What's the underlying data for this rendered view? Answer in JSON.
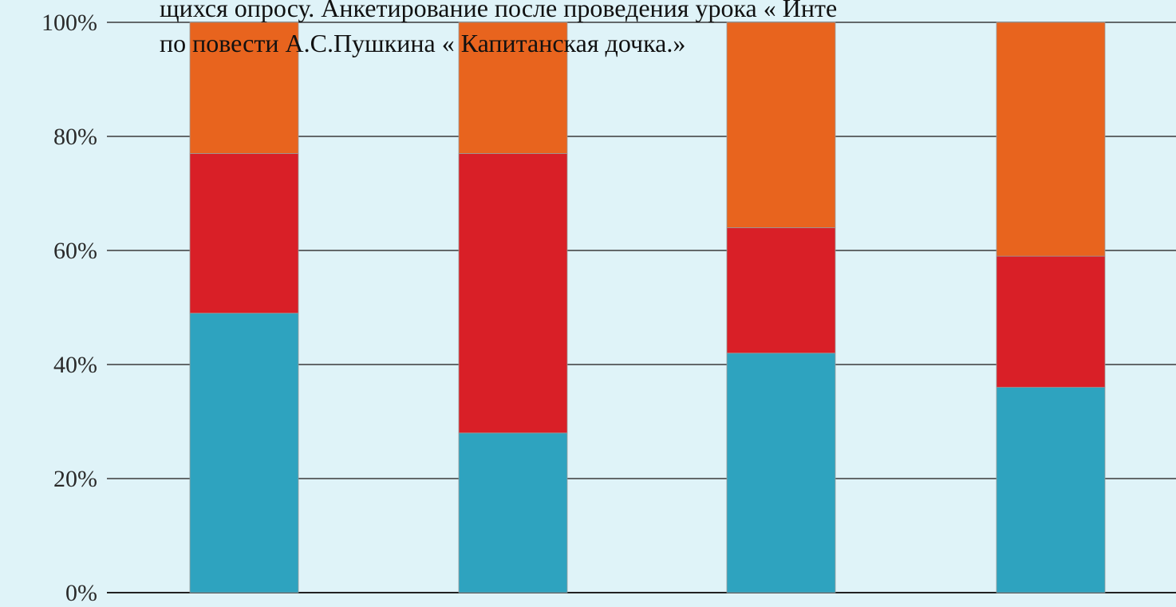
{
  "caption": {
    "line1": "щихся опросу. Анкетирование после проведения урока « Инте",
    "line2": "по повести А.С.Пушкина « Капитанская дочка.»"
  },
  "chart_data": {
    "type": "bar",
    "stacked": true,
    "categories": [
      "",
      "",
      "",
      ""
    ],
    "series": [
      {
        "values": [
          49,
          28,
          42,
          36
        ],
        "color": "#2ea3bf"
      },
      {
        "values": [
          28,
          49,
          22,
          23
        ],
        "color": "#d91f27"
      },
      {
        "values": [
          23,
          23,
          36,
          41
        ],
        "color": "#e8641e"
      }
    ],
    "ylim": [
      0,
      100
    ],
    "yticks": [
      "0%",
      "20%",
      "40%",
      "60%",
      "80%",
      "100%"
    ],
    "ytick_values": [
      0,
      20,
      40,
      60,
      80,
      100
    ],
    "grid": true,
    "legend": "none"
  }
}
